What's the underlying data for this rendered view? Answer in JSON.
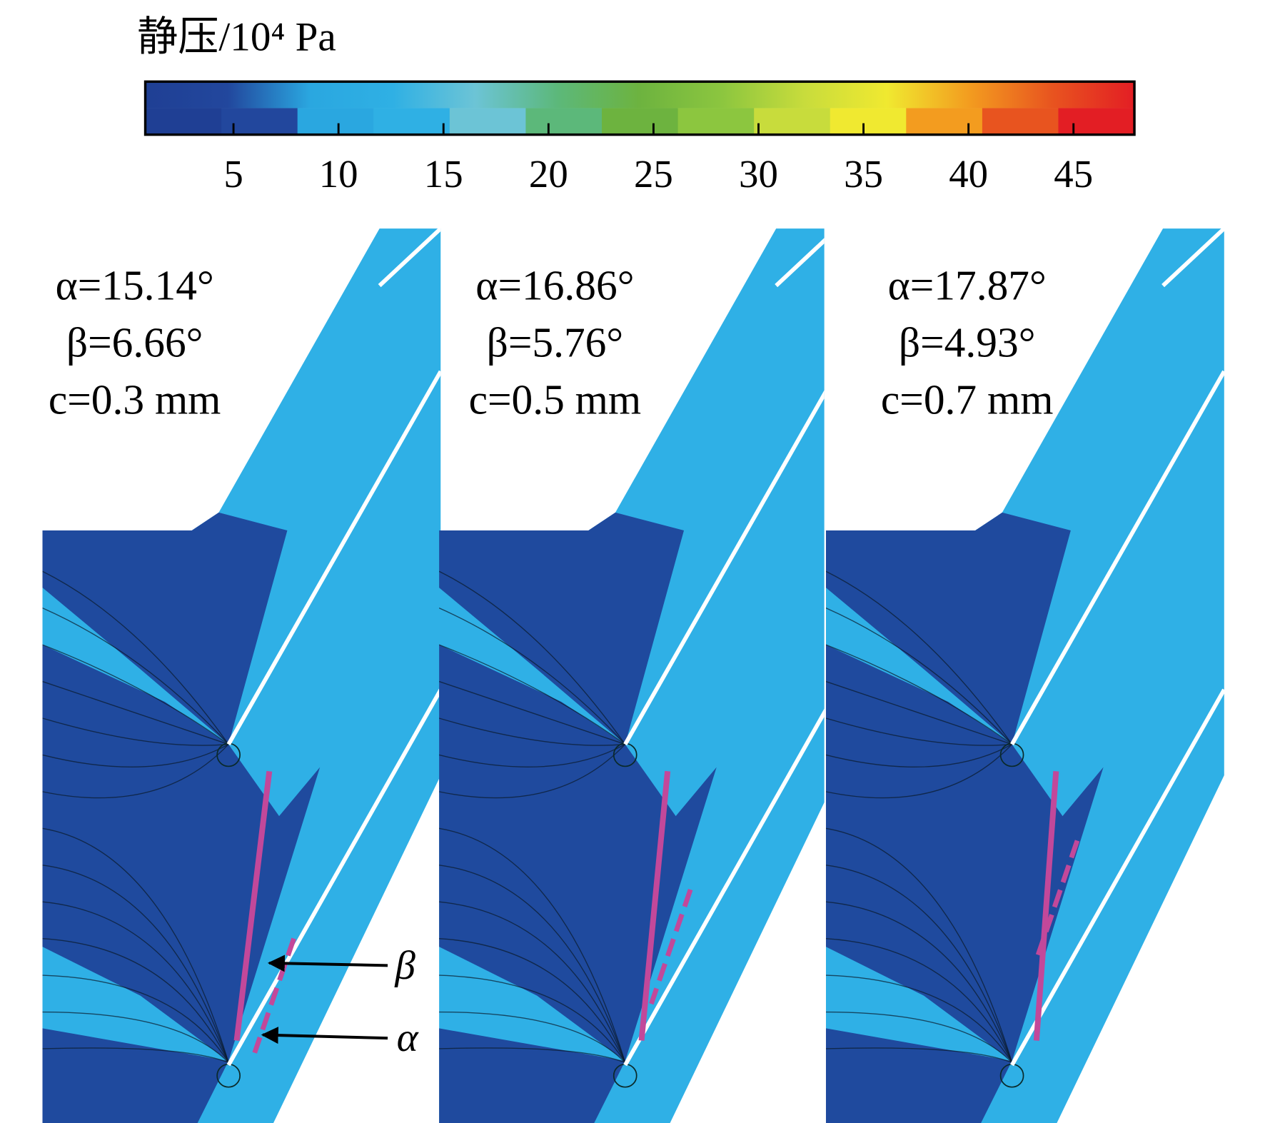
{
  "colorbar": {
    "title": "静压/10⁴ Pa",
    "lim": [
      0.8,
      47.9
    ],
    "ticks": [
      5,
      10,
      15,
      20,
      25,
      30,
      35,
      40,
      45
    ],
    "colors": [
      "#1f3f94",
      "#22479d",
      "#2aa7e0",
      "#2fb0e4",
      "#6cc4d6",
      "#5cb87a",
      "#6db33f",
      "#8cc63f",
      "#c8dc3c",
      "#f0e930",
      "#f39c1f",
      "#e8541f",
      "#e31e24"
    ]
  },
  "panels": [
    {
      "alpha": "α=15.14°",
      "beta": "β=6.66°",
      "c": "c=0.3 mm"
    },
    {
      "alpha": "α=16.86°",
      "beta": "β=5.76°",
      "c": "c=0.5 mm"
    },
    {
      "alpha": "α=17.87°",
      "beta": "β=4.93°",
      "c": "c=0.7 mm"
    }
  ],
  "arrows": {
    "beta": "β",
    "alpha": "α"
  }
}
